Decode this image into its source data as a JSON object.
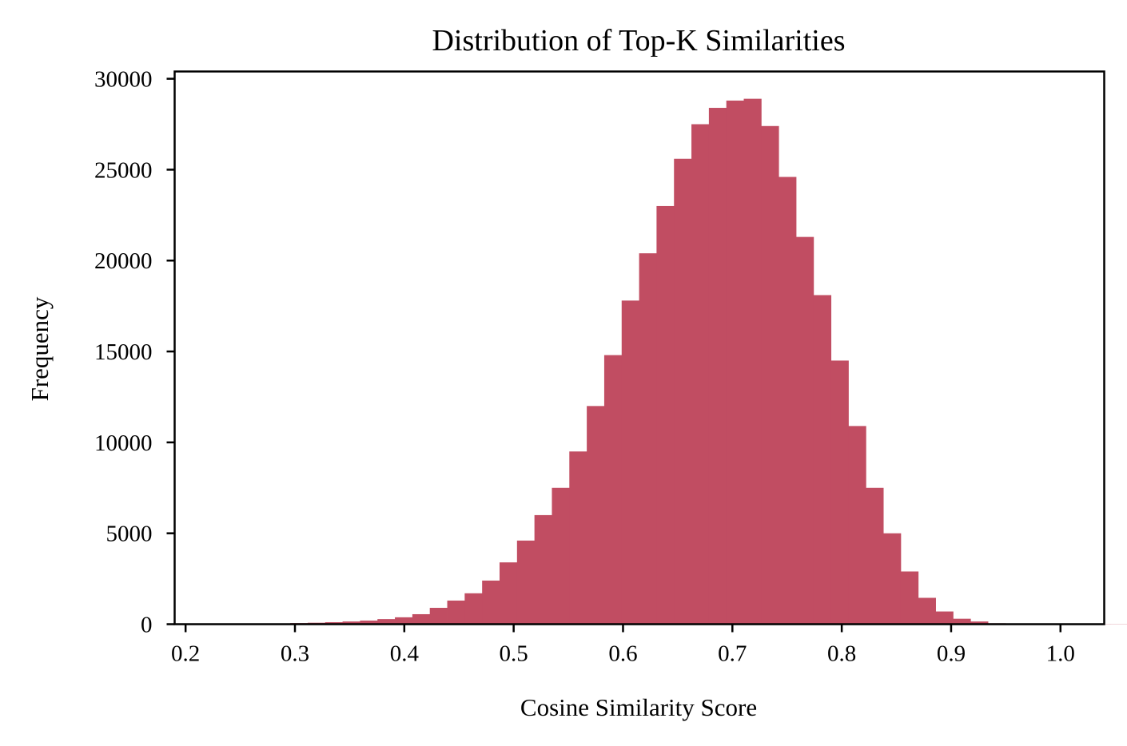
{
  "chart_data": {
    "type": "bar",
    "title": "Distribution of Top-K Similarities",
    "xlabel": "Cosine Similarity Score",
    "ylabel": "Frequency",
    "xlim": [
      0.19,
      1.04
    ],
    "ylim": [
      0,
      30400
    ],
    "x_ticks": [
      0.2,
      0.3,
      0.4,
      0.5,
      0.6,
      0.7,
      0.8,
      0.9,
      1.0
    ],
    "x_tick_labels": [
      "0.2",
      "0.3",
      "0.4",
      "0.5",
      "0.6",
      "0.7",
      "0.8",
      "0.9",
      "1.0"
    ],
    "y_ticks": [
      0,
      5000,
      10000,
      15000,
      20000,
      25000,
      30000
    ],
    "y_tick_labels": [
      "0",
      "5000",
      "10000",
      "15000",
      "20000",
      "25000",
      "30000"
    ],
    "bar_color": "#c14d62",
    "grid": false,
    "bins": {
      "start": 0.2,
      "width": 0.01595,
      "values": [
        20,
        10,
        15,
        20,
        25,
        40,
        60,
        80,
        110,
        150,
        200,
        280,
        380,
        550,
        900,
        1300,
        1700,
        2400,
        3400,
        4600,
        6000,
        7500,
        9500,
        12000,
        14800,
        17800,
        20400,
        23000,
        25600,
        27500,
        28400,
        28800,
        28900,
        27400,
        24600,
        21300,
        18100,
        14500,
        10900,
        7500,
        5000,
        2900,
        1450,
        700,
        300,
        150,
        50,
        20,
        10,
        10,
        10,
        10,
        10,
        10,
        10,
        10,
        10,
        10,
        10,
        10,
        10,
        20,
        20,
        100,
        15
      ]
    }
  }
}
